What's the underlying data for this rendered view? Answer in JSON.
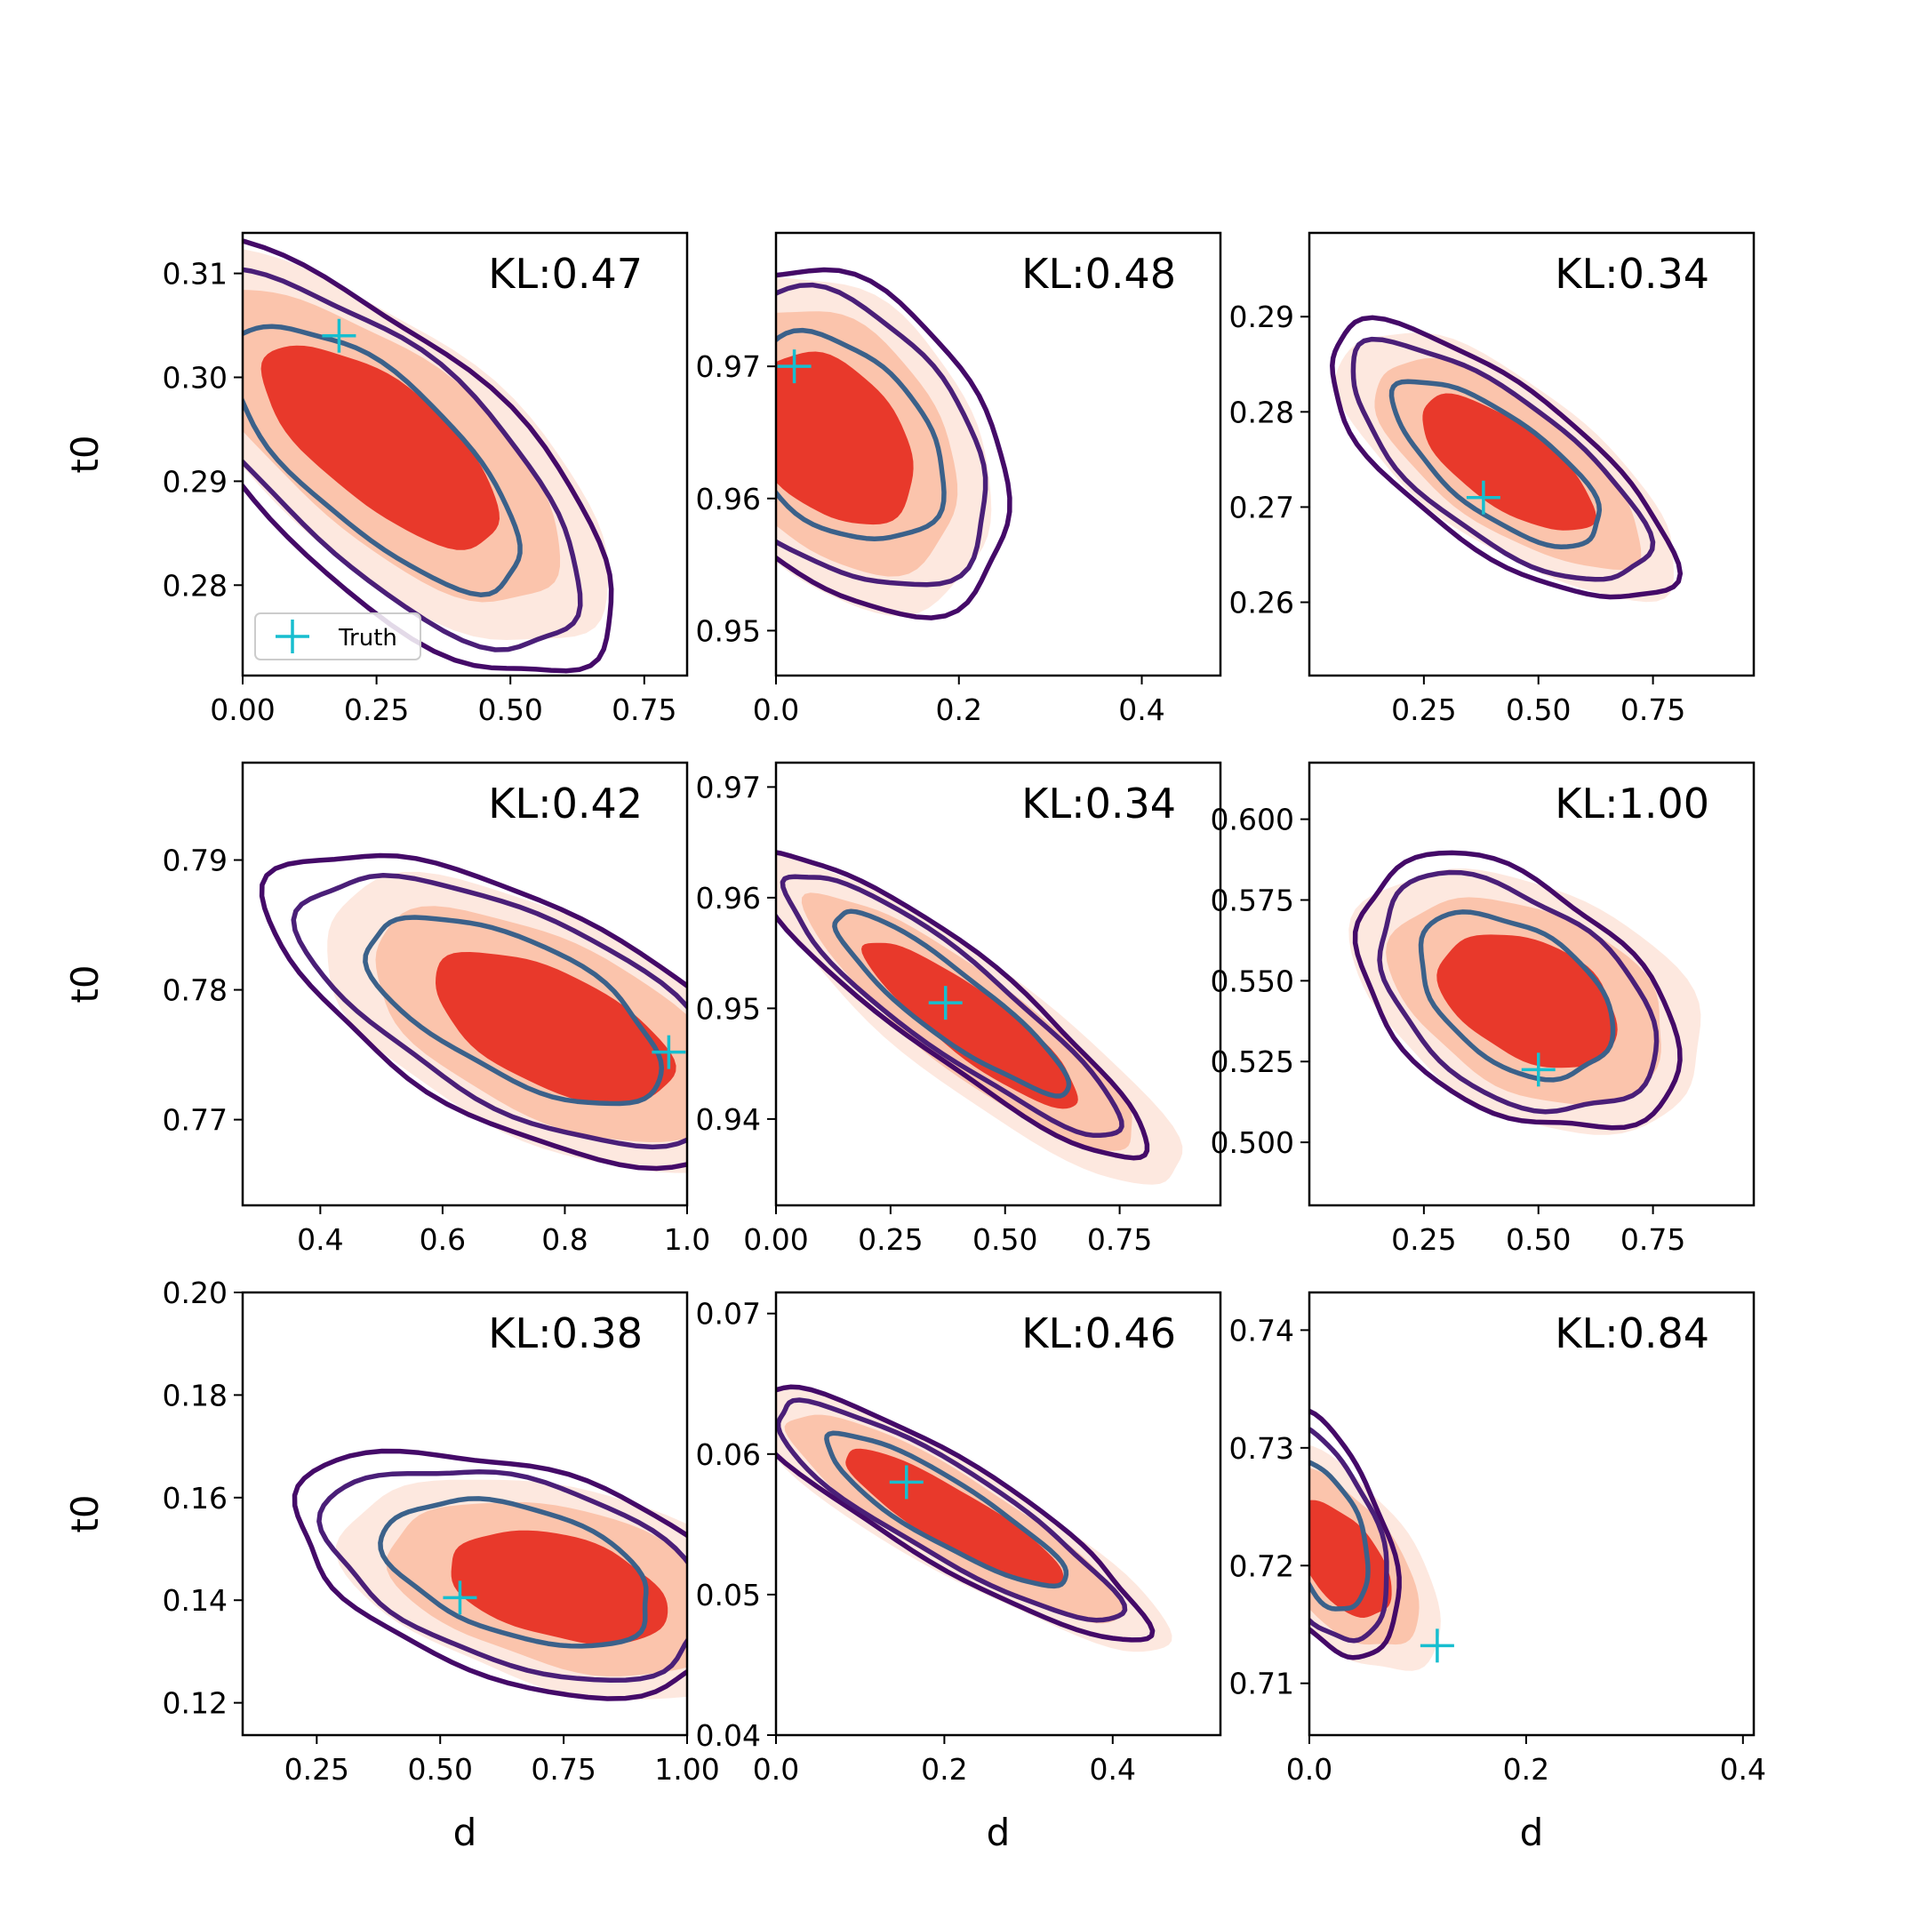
{
  "chart_data": [
    {
      "type": "contour",
      "xlabel": "",
      "ylabel": "t0",
      "annotation": "KL:0.47",
      "xlim": [
        0.0,
        0.83
      ],
      "ylim": [
        0.2713,
        0.3139
      ],
      "xticks": [
        0.0,
        0.25,
        0.5,
        0.75
      ],
      "xticklabels": [
        "0.00",
        "0.25",
        "0.50",
        "0.75"
      ],
      "yticks": [
        0.28,
        0.29,
        0.3,
        0.31
      ],
      "yticklabels": [
        "0.28",
        "0.29",
        "0.30",
        "0.31"
      ],
      "truth": [
        0.18,
        0.304
      ],
      "legend": {
        "label": "Truth",
        "position": "lower-left"
      },
      "posterior": {
        "cx": 0.25,
        "cy": 0.2925,
        "sx": 0.18,
        "sy": 0.0085,
        "rho": -0.72
      },
      "reference": {
        "cx": 0.26,
        "cy": 0.2935,
        "sx": 0.17,
        "sy": 0.0075,
        "rho": -0.7
      },
      "xclip": [
        0.0,
        0.83
      ]
    },
    {
      "type": "contour",
      "xlabel": "",
      "ylabel": "",
      "annotation": "KL:0.48",
      "xlim": [
        0.0,
        0.486
      ],
      "ylim": [
        0.9466,
        0.9801
      ],
      "xticks": [
        0.0,
        0.2,
        0.4
      ],
      "xticklabels": [
        "0.0",
        "0.2",
        "0.4"
      ],
      "yticks": [
        0.95,
        0.96,
        0.97
      ],
      "yticklabels": [
        "0.95",
        "0.96",
        "0.97"
      ],
      "truth": [
        0.02,
        0.97
      ],
      "posterior": {
        "cx": 0.07,
        "cy": 0.9645,
        "sx": 0.075,
        "sy": 0.0052,
        "rho": -0.35
      },
      "reference": {
        "cx": 0.06,
        "cy": 0.9645,
        "sx": 0.07,
        "sy": 0.005,
        "rho": -0.35
      },
      "xclip": [
        0.0,
        0.486
      ]
    },
    {
      "type": "contour",
      "xlabel": "",
      "ylabel": "",
      "annotation": "KL:0.34",
      "xlim": [
        0.0,
        0.97
      ],
      "ylim": [
        0.2523,
        0.2988
      ],
      "xticks": [
        0.25,
        0.5,
        0.75
      ],
      "xticklabels": [
        "0.25",
        "0.50",
        "0.75"
      ],
      "yticks": [
        0.26,
        0.27,
        0.28,
        0.29
      ],
      "yticklabels": [
        "0.26",
        "0.27",
        "0.28",
        "0.29"
      ],
      "truth": [
        0.38,
        0.271
      ],
      "posterior": {
        "cx": 0.41,
        "cy": 0.2745,
        "sx": 0.15,
        "sy": 0.0058,
        "rho": -0.72
      },
      "reference": {
        "cx": 0.43,
        "cy": 0.2745,
        "sx": 0.145,
        "sy": 0.0055,
        "rho": -0.7
      },
      "xclip": [
        0.0,
        0.97
      ]
    },
    {
      "type": "contour",
      "xlabel": "",
      "ylabel": "t0",
      "annotation": "KL:0.42",
      "xlim": [
        0.273,
        1.0
      ],
      "ylim": [
        0.7634,
        0.7975
      ],
      "xticks": [
        0.4,
        0.6,
        0.8,
        1.0
      ],
      "xticklabels": [
        "0.4",
        "0.6",
        "0.8",
        "1.0"
      ],
      "yticks": [
        0.77,
        0.78,
        0.79
      ],
      "yticklabels": [
        "0.77",
        "0.78",
        "0.79"
      ],
      "truth": [
        0.97,
        0.7752
      ],
      "posterior": {
        "cx": 0.72,
        "cy": 0.7785,
        "sx": 0.16,
        "sy": 0.0048,
        "rho": -0.62
      },
      "reference": {
        "cx": 0.78,
        "cy": 0.777,
        "sx": 0.15,
        "sy": 0.0045,
        "rho": -0.58
      },
      "xclip": [
        0.273,
        1.0
      ]
    },
    {
      "type": "contour",
      "xlabel": "",
      "ylabel": "",
      "annotation": "KL:0.34",
      "xlim": [
        0.0,
        0.97
      ],
      "ylim": [
        0.9322,
        0.9722
      ],
      "xticks": [
        0.0,
        0.25,
        0.5,
        0.75
      ],
      "xticklabels": [
        "0.00",
        "0.25",
        "0.50",
        "0.75"
      ],
      "yticks": [
        0.94,
        0.95,
        0.96,
        0.97
      ],
      "yticklabels": [
        "0.94",
        "0.95",
        "0.96",
        "0.97"
      ],
      "truth": [
        0.37,
        0.9505
      ],
      "posterior": {
        "cx": 0.38,
        "cy": 0.9505,
        "sx": 0.17,
        "sy": 0.0055,
        "rho": -0.9
      },
      "reference": {
        "cx": 0.43,
        "cy": 0.9485,
        "sx": 0.18,
        "sy": 0.0058,
        "rho": -0.88
      },
      "xclip": [
        0.0,
        0.97
      ]
    },
    {
      "type": "contour",
      "xlabel": "",
      "ylabel": "",
      "annotation": "KL:1.00",
      "xlim": [
        0.0,
        0.97
      ],
      "ylim": [
        0.4805,
        0.6175
      ],
      "xticks": [
        0.25,
        0.5,
        0.75
      ],
      "xticklabels": [
        "0.25",
        "0.50",
        "0.75"
      ],
      "yticks": [
        0.5,
        0.525,
        0.55,
        0.575,
        0.6
      ],
      "yticklabels": [
        "0.500",
        "0.525",
        "0.550",
        "0.575",
        "0.600"
      ],
      "truth": [
        0.5,
        0.5225
      ],
      "posterior": {
        "cx": 0.45,
        "cy": 0.5455,
        "sx": 0.14,
        "sy": 0.017,
        "rho": -0.42
      },
      "reference": {
        "cx": 0.48,
        "cy": 0.544,
        "sx": 0.15,
        "sy": 0.016,
        "rho": -0.38
      },
      "xclip": [
        0.0,
        0.97
      ]
    },
    {
      "type": "contour",
      "xlabel": "d",
      "ylabel": "t0",
      "annotation": "KL:0.38",
      "xlim": [
        0.1,
        1.0
      ],
      "ylim": [
        0.1137,
        0.2
      ],
      "xticks": [
        0.25,
        0.5,
        0.75,
        1.0
      ],
      "xticklabels": [
        "0.25",
        "0.50",
        "0.75",
        "1.00"
      ],
      "yticks": [
        0.12,
        0.14,
        0.16,
        0.18,
        0.2
      ],
      "yticklabels": [
        "0.12",
        "0.14",
        "0.16",
        "0.18",
        "0.20"
      ],
      "truth": [
        0.54,
        0.1405
      ],
      "posterior": {
        "cx": 0.66,
        "cy": 0.1455,
        "sx": 0.18,
        "sy": 0.0095,
        "rho": -0.42
      },
      "reference": {
        "cx": 0.74,
        "cy": 0.1425,
        "sx": 0.17,
        "sy": 0.0085,
        "rho": -0.38
      },
      "xclip": [
        0.1,
        1.0
      ]
    },
    {
      "type": "contour",
      "xlabel": "d",
      "ylabel": "",
      "annotation": "KL:0.46",
      "xlim": [
        0.0,
        0.528
      ],
      "ylim": [
        0.04,
        0.0715
      ],
      "xticks": [
        0.0,
        0.2,
        0.4
      ],
      "xticklabels": [
        "0.0",
        "0.2",
        "0.4"
      ],
      "yticks": [
        0.04,
        0.05,
        0.06,
        0.07
      ],
      "yticklabels": [
        "0.04",
        "0.05",
        "0.06",
        "0.07"
      ],
      "truth": [
        0.155,
        0.058
      ],
      "posterior": {
        "cx": 0.2,
        "cy": 0.056,
        "sx": 0.095,
        "sy": 0.0036,
        "rho": -0.88
      },
      "reference": {
        "cx": 0.21,
        "cy": 0.0555,
        "sx": 0.1,
        "sy": 0.0037,
        "rho": -0.88
      },
      "xclip": [
        0.0,
        0.528
      ]
    },
    {
      "type": "contour",
      "xlabel": "d",
      "ylabel": "",
      "annotation": "KL:0.84",
      "xlim": [
        0.0,
        0.41
      ],
      "ylim": [
        0.7056,
        0.7432
      ],
      "xticks": [
        0.0,
        0.2,
        0.4
      ],
      "xticklabels": [
        "0.0",
        "0.2",
        "0.4"
      ],
      "yticks": [
        0.71,
        0.72,
        0.73,
        0.74
      ],
      "yticklabels": [
        "0.71",
        "0.72",
        "0.73",
        "0.74"
      ],
      "truth": [
        0.118,
        0.7132
      ],
      "posterior": {
        "cx": 0.015,
        "cy": 0.7225,
        "sx": 0.026,
        "sy": 0.0042,
        "rho": -0.45
      },
      "reference": {
        "cx": 0.03,
        "cy": 0.7205,
        "sx": 0.035,
        "sy": 0.0038,
        "rho": -0.55
      },
      "xclip": [
        0.0,
        0.41
      ]
    }
  ],
  "colors": {
    "fill_outer": "#fde8df",
    "fill_mid": "#fbc4ac",
    "fill_inner": "#e8392b",
    "contour_outer": "#440a68",
    "contour_mid": "#4a1f78",
    "contour_inner": "#3b618a",
    "truth": "#17becf"
  }
}
